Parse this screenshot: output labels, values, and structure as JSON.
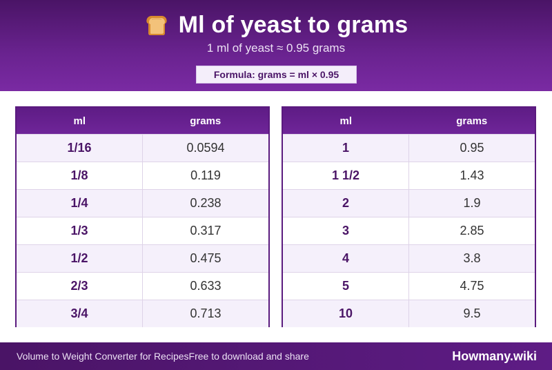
{
  "header": {
    "title": "Ml of yeast to grams",
    "icon": "bread-icon",
    "subtitle": "1 ml of yeast ≈ 0.95 grams",
    "formula": "Formula: grams = ml × 0.95"
  },
  "tables": {
    "left": {
      "headers": [
        "ml",
        "grams"
      ],
      "rows": [
        {
          "ml": "1/16",
          "grams": "0.0594"
        },
        {
          "ml": "1/8",
          "grams": "0.119"
        },
        {
          "ml": "1/4",
          "grams": "0.238"
        },
        {
          "ml": "1/3",
          "grams": "0.317"
        },
        {
          "ml": "1/2",
          "grams": "0.475"
        },
        {
          "ml": "2/3",
          "grams": "0.633"
        },
        {
          "ml": "3/4",
          "grams": "0.713"
        }
      ]
    },
    "right": {
      "headers": [
        "ml",
        "grams"
      ],
      "rows": [
        {
          "ml": "1",
          "grams": "0.95"
        },
        {
          "ml": "1 1/2",
          "grams": "1.43"
        },
        {
          "ml": "2",
          "grams": "1.9"
        },
        {
          "ml": "3",
          "grams": "2.85"
        },
        {
          "ml": "4",
          "grams": "3.8"
        },
        {
          "ml": "5",
          "grams": "4.75"
        },
        {
          "ml": "10",
          "grams": "9.5"
        }
      ]
    }
  },
  "footer": {
    "left_text": "Volume to Weight Converter for Recipes",
    "middle_text": "Free to download and share",
    "brand": "Howmany.wiki"
  },
  "colors": {
    "primary": "#5e1c85",
    "accent_text": "#4a1466",
    "row_alt": "#f5f0fb"
  }
}
